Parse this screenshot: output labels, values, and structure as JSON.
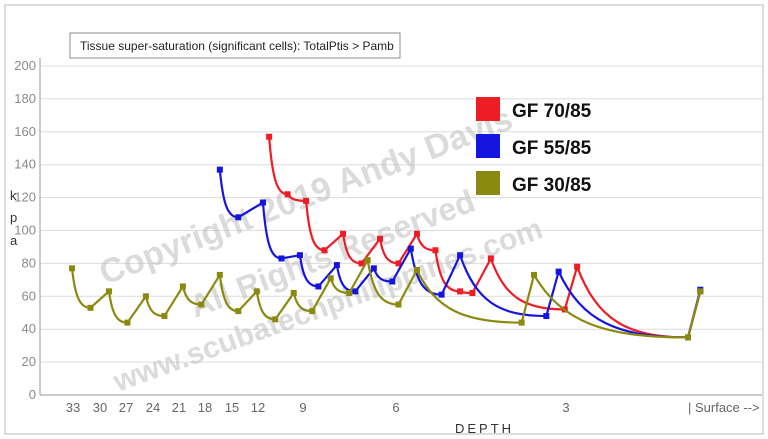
{
  "chart_data": {
    "type": "line",
    "title": "Tissue super-saturation (significant cells): TotalPtis > Pamb",
    "xlabel": "DEPTH",
    "ylabel": "kPa",
    "ylim": [
      0,
      200
    ],
    "yticks": [
      0,
      20,
      40,
      60,
      80,
      100,
      120,
      140,
      160,
      180,
      200
    ],
    "xtick_labels": [
      "33",
      "30",
      "27",
      "24",
      "21",
      "18",
      "15",
      "12",
      "9",
      "6",
      "3",
      "| Surface -->"
    ],
    "legend_position": "top-right",
    "grid": true,
    "series": [
      {
        "name": "GF 70/85",
        "color": "#ee1c25",
        "points": [
          [
            0.32,
            157
          ],
          [
            0.35,
            122
          ],
          [
            0.38,
            118
          ],
          [
            0.41,
            88
          ],
          [
            0.44,
            98
          ],
          [
            0.47,
            80
          ],
          [
            0.5,
            95
          ],
          [
            0.53,
            80
          ],
          [
            0.56,
            98
          ],
          [
            0.59,
            88
          ],
          [
            0.63,
            63
          ],
          [
            0.65,
            62
          ],
          [
            0.68,
            83
          ],
          [
            0.8,
            52
          ],
          [
            0.82,
            78
          ],
          [
            1.0,
            35
          ],
          [
            1.02,
            63
          ]
        ]
      },
      {
        "name": "GF 55/85",
        "color": "#1515e0",
        "points": [
          [
            0.24,
            137
          ],
          [
            0.27,
            108
          ],
          [
            0.31,
            117
          ],
          [
            0.34,
            83
          ],
          [
            0.37,
            85
          ],
          [
            0.4,
            66
          ],
          [
            0.43,
            79
          ],
          [
            0.46,
            63
          ],
          [
            0.49,
            77
          ],
          [
            0.52,
            69
          ],
          [
            0.55,
            89
          ],
          [
            0.6,
            61
          ],
          [
            0.63,
            85
          ],
          [
            0.77,
            48
          ],
          [
            0.79,
            75
          ],
          [
            1.0,
            35
          ],
          [
            1.02,
            64
          ]
        ]
      },
      {
        "name": "GF 30/85",
        "color": "#8a8a10",
        "points": [
          [
            0.0,
            77
          ],
          [
            0.03,
            53
          ],
          [
            0.06,
            63
          ],
          [
            0.09,
            44
          ],
          [
            0.12,
            60
          ],
          [
            0.15,
            48
          ],
          [
            0.18,
            66
          ],
          [
            0.21,
            55
          ],
          [
            0.24,
            73
          ],
          [
            0.27,
            51
          ],
          [
            0.3,
            63
          ],
          [
            0.33,
            46
          ],
          [
            0.36,
            62
          ],
          [
            0.39,
            51
          ],
          [
            0.42,
            71
          ],
          [
            0.45,
            62
          ],
          [
            0.48,
            82
          ],
          [
            0.53,
            55
          ],
          [
            0.56,
            76
          ],
          [
            0.73,
            44
          ],
          [
            0.75,
            73
          ],
          [
            1.0,
            35
          ],
          [
            1.02,
            63
          ]
        ]
      }
    ]
  },
  "watermark": {
    "line1": "Copyright 2019 Andy Davis",
    "line2": "All Rights Reserved",
    "line3": "www.scubatechphilippines.com"
  }
}
